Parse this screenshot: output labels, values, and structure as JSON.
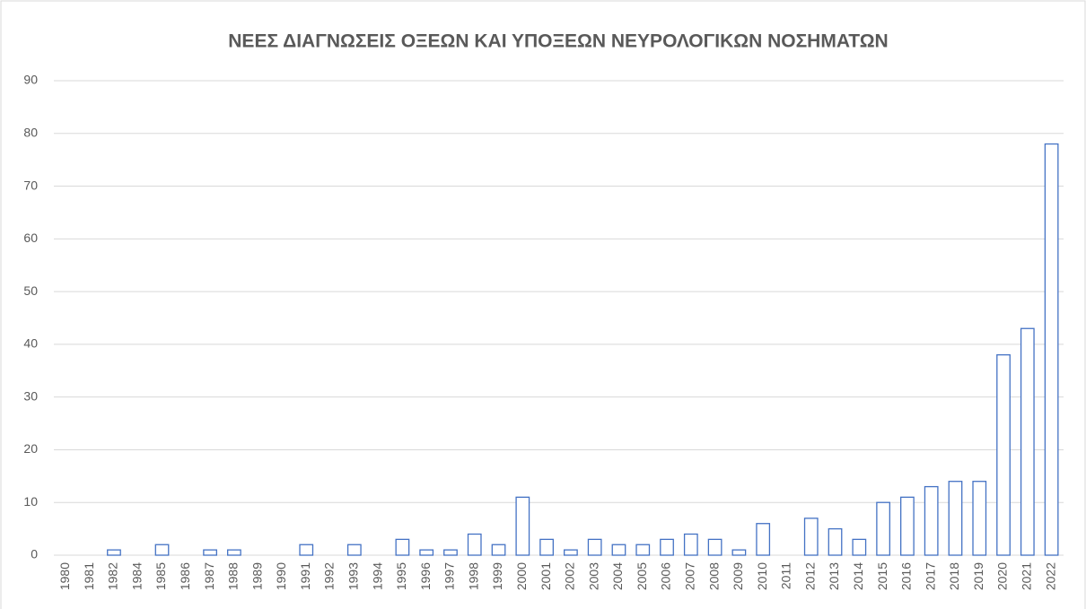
{
  "chart_data": {
    "type": "bar",
    "title": "ΝΕΕΣ ΔΙΑΓΝΩΣΕΙΣ ΟΞΕΩΝ ΚΑΙ ΥΠΟΞΕΩΝ ΝΕΥΡΟΛΟΓΙΚΩΝ ΝΟΣΗΜΑΤΩΝ",
    "categories": [
      "1980",
      "1981",
      "1982",
      "1984",
      "1985",
      "1986",
      "1987",
      "1988",
      "1989",
      "1990",
      "1991",
      "1992",
      "1993",
      "1994",
      "1995",
      "1996",
      "1997",
      "1998",
      "1999",
      "2000",
      "2001",
      "2002",
      "2003",
      "2004",
      "2005",
      "2006",
      "2007",
      "2008",
      "2009",
      "2010",
      "2011",
      "2012",
      "2013",
      "2014",
      "2015",
      "2016",
      "2017",
      "2018",
      "2019",
      "2020",
      "2021",
      "2022"
    ],
    "values": [
      0,
      0,
      1,
      0,
      2,
      0,
      1,
      1,
      0,
      0,
      2,
      0,
      2,
      0,
      3,
      1,
      1,
      4,
      2,
      11,
      3,
      1,
      3,
      2,
      2,
      3,
      4,
      3,
      1,
      6,
      0,
      7,
      5,
      3,
      10,
      11,
      13,
      14,
      14,
      38,
      43,
      78
    ],
    "color": "#4472c4",
    "ylim": [
      0,
      90
    ],
    "yticks": [
      0,
      10,
      20,
      30,
      40,
      50,
      60,
      70,
      80,
      90
    ],
    "grid": true
  }
}
